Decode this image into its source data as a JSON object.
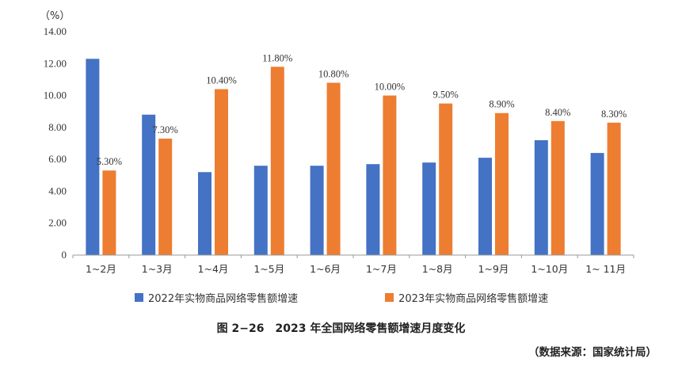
{
  "chart_data": {
    "type": "bar",
    "unit_label": "（%）",
    "categories": [
      "1~2月",
      "1~3月",
      "1~4月",
      "1~5月",
      "1~6月",
      "1~7月",
      "1~8月",
      "1~9月",
      "1~10月",
      "1~ 11月"
    ],
    "series": [
      {
        "name": "2022年实物商品网络零售额增速",
        "color": "#4472C4",
        "values": [
          12.3,
          8.8,
          5.2,
          5.6,
          5.6,
          5.7,
          5.8,
          6.1,
          7.2,
          6.4
        ],
        "labels": []
      },
      {
        "name": "2023年实物商品网络零售额增速",
        "color": "#ED7D31",
        "values": [
          5.3,
          7.3,
          10.4,
          11.8,
          10.8,
          10.0,
          9.5,
          8.9,
          8.4,
          8.3
        ],
        "labels": [
          "5.30%",
          "7.30%",
          "10.40%",
          "11.80%",
          "10.80%",
          "10.00%",
          "9.50%",
          "8.90%",
          "8.40%",
          "8.30%"
        ]
      }
    ],
    "ylim": [
      0,
      14
    ],
    "yticks": [
      "0",
      "2.00",
      "4.00",
      "6.00",
      "8.00",
      "10.00",
      "12.00",
      "14.00"
    ],
    "ytick_values": [
      0,
      2,
      4,
      6,
      8,
      10,
      12,
      14
    ],
    "grid": false,
    "legend_position": "bottom"
  },
  "caption": "图 2−26　2023 年全国网络零售额增速月度变化",
  "source": "（数据来源：国家统计局）"
}
